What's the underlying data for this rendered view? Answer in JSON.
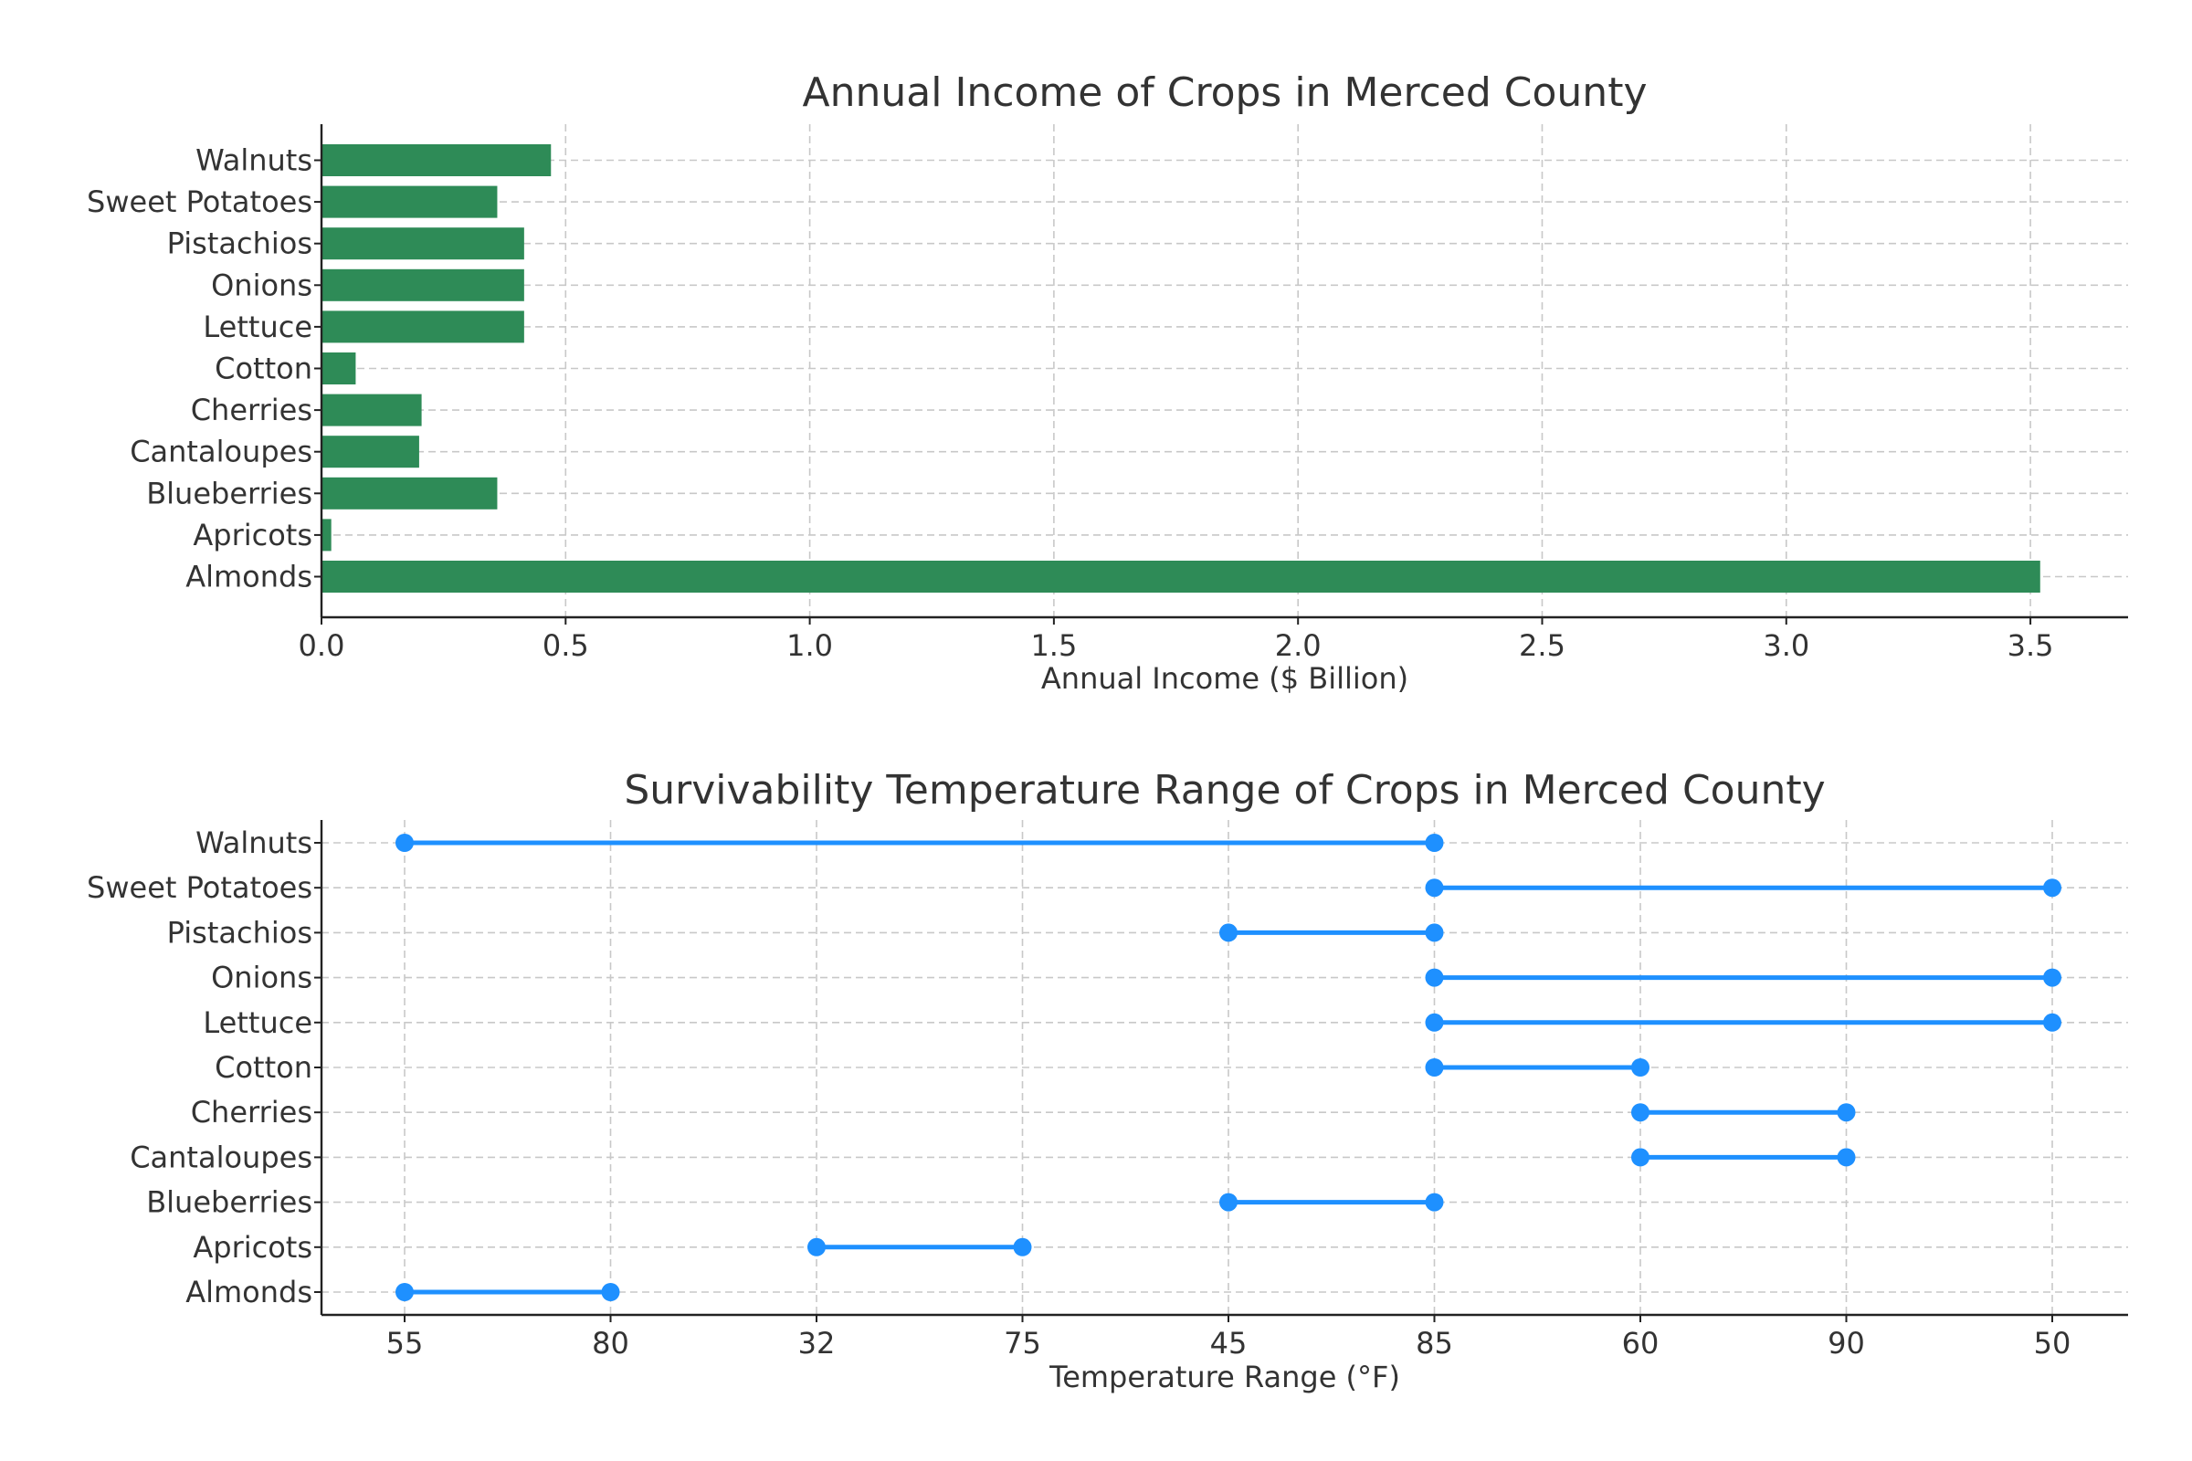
{
  "chart_data": [
    {
      "type": "bar",
      "orientation": "horizontal",
      "title": "Annual Income of Crops in Merced County",
      "xlabel": "Annual Income ($ Billion)",
      "ylabel": "",
      "categories": [
        "Almonds",
        "Apricots",
        "Blueberries",
        "Cantaloupes",
        "Cherries",
        "Cotton",
        "Lettuce",
        "Onions",
        "Pistachios",
        "Sweet Potatoes",
        "Walnuts"
      ],
      "values": [
        3.52,
        0.02,
        0.36,
        0.2,
        0.205,
        0.07,
        0.415,
        0.415,
        0.415,
        0.36,
        0.47
      ],
      "xlim": [
        0,
        3.7
      ],
      "xticks": [
        0.0,
        0.5,
        1.0,
        1.5,
        2.0,
        2.5,
        3.0,
        3.5
      ],
      "xtick_labels": [
        "0.0",
        "0.5",
        "1.0",
        "1.5",
        "2.0",
        "2.5",
        "3.0",
        "3.5"
      ],
      "bar_color": "#2e8b57",
      "grid": true
    },
    {
      "type": "dumbbell",
      "title": "Survivability Temperature Range of Crops in Merced County",
      "xlabel": "Temperature Range (°F)",
      "ylabel": "",
      "categories": [
        "Almonds",
        "Apricots",
        "Blueberries",
        "Cantaloupes",
        "Cherries",
        "Cotton",
        "Lettuce",
        "Onions",
        "Pistachios",
        "Sweet Potatoes",
        "Walnuts"
      ],
      "xtick_labels": [
        "55",
        "80",
        "32",
        "75",
        "45",
        "85",
        "60",
        "90",
        "50"
      ],
      "ranges": [
        {
          "crop": "Almonds",
          "low": "55",
          "high": "80"
        },
        {
          "crop": "Apricots",
          "low": "32",
          "high": "75"
        },
        {
          "crop": "Blueberries",
          "low": "45",
          "high": "85"
        },
        {
          "crop": "Cantaloupes",
          "low": "60",
          "high": "90"
        },
        {
          "crop": "Cherries",
          "low": "60",
          "high": "90"
        },
        {
          "crop": "Cotton",
          "low": "85",
          "high": "60"
        },
        {
          "crop": "Lettuce",
          "low": "85",
          "high": "50"
        },
        {
          "crop": "Onions",
          "low": "85",
          "high": "50"
        },
        {
          "crop": "Pistachios",
          "low": "45",
          "high": "85"
        },
        {
          "crop": "Sweet Potatoes",
          "low": "85",
          "high": "50"
        },
        {
          "crop": "Walnuts",
          "low": "55",
          "high": "85"
        }
      ],
      "line_color": "#1e90ff",
      "grid": true
    }
  ]
}
